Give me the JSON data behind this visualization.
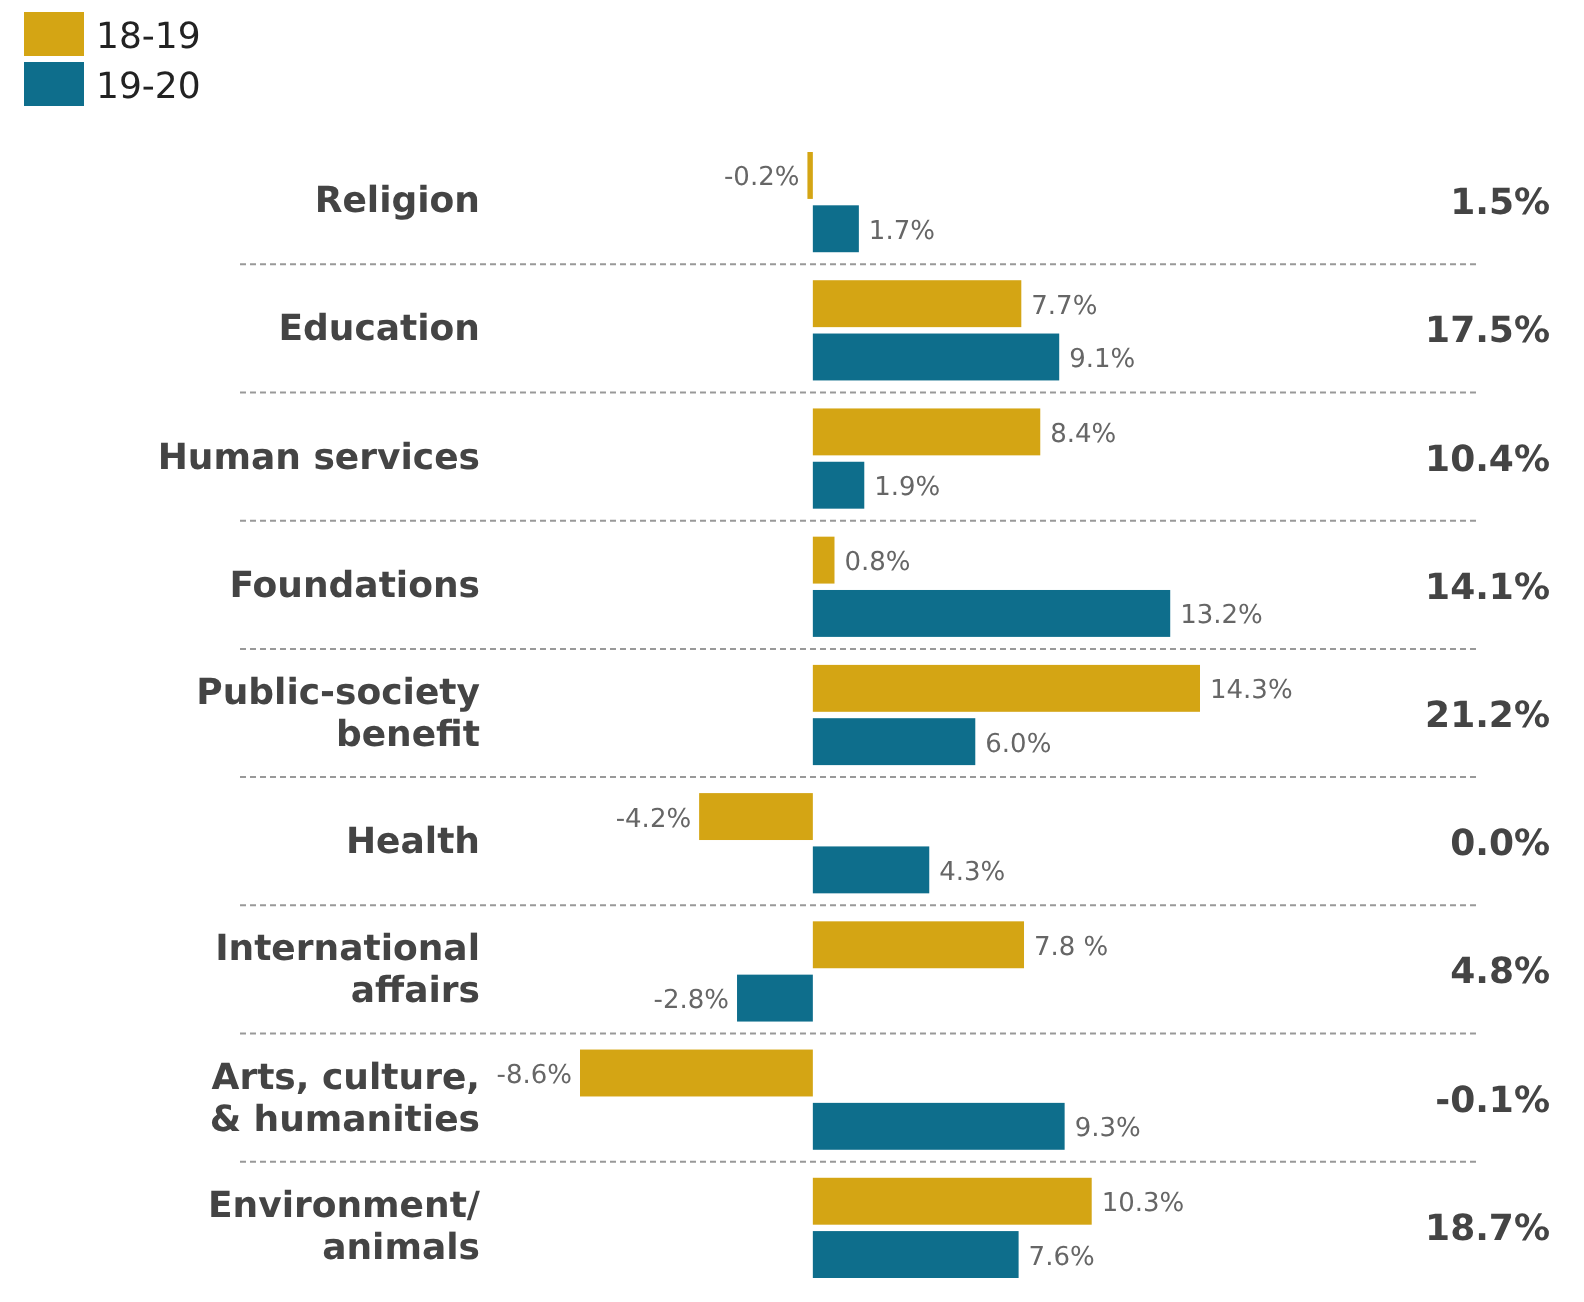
{
  "chart_data": {
    "type": "bar",
    "orientation": "horizontal",
    "categories": [
      "Religion",
      "Education",
      "Human services",
      "Foundations",
      "Public-society\nbenefit",
      "Health",
      "International\naffairs",
      "Arts, culture,\n& humanities",
      "Environment/\nanimals"
    ],
    "series": [
      {
        "name": "18-19",
        "color": "#d4a514",
        "values": [
          -0.2,
          7.7,
          8.4,
          0.8,
          14.3,
          -4.2,
          7.8,
          -8.6,
          10.3
        ],
        "value_labels": [
          "-0.2%",
          "7.7%",
          "8.4%",
          "0.8%",
          "14.3%",
          "-4.2%",
          "7.8 %",
          "-8.6%",
          "10.3%"
        ]
      },
      {
        "name": "19-20",
        "color": "#0e6e8c",
        "values": [
          1.7,
          9.1,
          1.9,
          13.2,
          6.0,
          4.3,
          -2.8,
          9.3,
          7.6
        ],
        "value_labels": [
          "1.7%",
          "9.1%",
          "1.9%",
          "13.2%",
          "6.0%",
          "4.3%",
          "-2.8%",
          "9.3%",
          "7.6%"
        ]
      }
    ],
    "legend": "top left",
    "tick_labels": "y",
    "annotations": [
      "1.5%",
      "17.5%",
      "10.4%",
      "14.1%",
      "21.2%",
      "0.0%",
      "4.8%",
      "-0.1%",
      "18.7%"
    ]
  }
}
